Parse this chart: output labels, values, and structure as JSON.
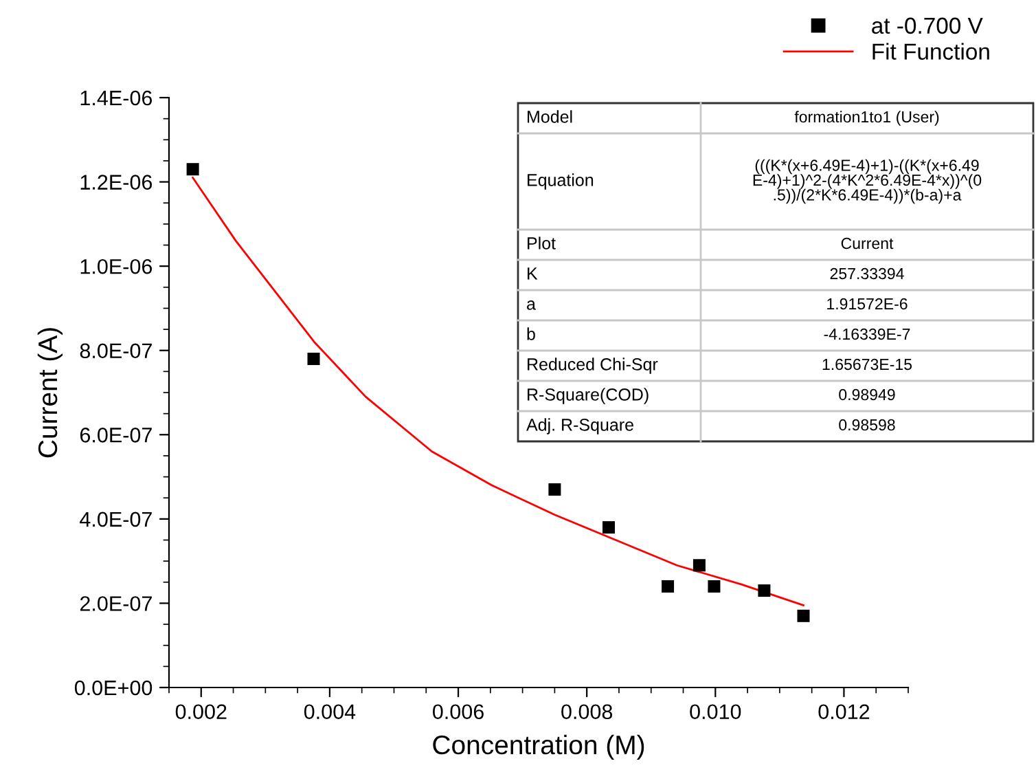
{
  "chart_data": {
    "type": "scatter",
    "xlabel": "Concentration (M)",
    "ylabel": "Current (A)",
    "xlim": [
      0.0015,
      0.013
    ],
    "xticks": [
      {
        "value": 0.002,
        "label": "0.002"
      },
      {
        "value": 0.004,
        "label": "0.004"
      },
      {
        "value": 0.006,
        "label": "0.006"
      },
      {
        "value": 0.008,
        "label": "0.008"
      },
      {
        "value": 0.01,
        "label": "0.010"
      },
      {
        "value": 0.012,
        "label": "0.012"
      }
    ],
    "ylim": [
      0,
      1.4e-06
    ],
    "yticks": [
      {
        "value": 0,
        "label": "0.0E+00"
      },
      {
        "value": 2e-07,
        "label": "2.0E-07"
      },
      {
        "value": 4e-07,
        "label": "4.0E-07"
      },
      {
        "value": 6e-07,
        "label": "6.0E-07"
      },
      {
        "value": 8e-07,
        "label": "8.0E-07"
      },
      {
        "value": 1e-06,
        "label": "1.0E-06"
      },
      {
        "value": 1.2e-06,
        "label": "1.2E-06"
      },
      {
        "value": 1.4e-06,
        "label": "1.4E-06"
      }
    ],
    "grid": false,
    "legend": "top right",
    "series": [
      {
        "name": "at -0.700 V",
        "color": "#000000",
        "marker": "square",
        "x": [
          0.00187,
          0.00375,
          0.0075,
          0.00834,
          0.00926,
          0.00975,
          0.00998,
          0.01076,
          0.01137
        ],
        "values": [
          1.23e-06,
          7.8e-07,
          4.7e-07,
          3.8e-07,
          2.4e-07,
          2.9e-07,
          2.4e-07,
          2.3e-07,
          1.7e-07
        ]
      },
      {
        "name": "Fit Function",
        "type": "line",
        "color": "#ff0000",
        "marker": "none",
        "line_style": "solid",
        "x": [
          0.00187,
          0.00254,
          0.00376,
          0.00456,
          0.00559,
          0.00652,
          0.0075,
          0.00845,
          0.0094,
          0.0104,
          0.01137
        ],
        "values": [
          1.21e-06,
          1.06e-06,
          8.2e-07,
          6.9e-07,
          5.6e-07,
          4.8e-07,
          4.1e-07,
          3.5e-07,
          2.9e-07,
          2.45e-07,
          1.95e-07
        ]
      }
    ],
    "annotations": [
      "Model",
      "formation1to1 (User)",
      "Equation",
      "(((K*(x+6.49E-4)+1)-((K*(x+6.49\nE-4)+1)^2-(4*K^2*6.49E-4*x))^(0\n.5))/(2*K*6.49E-4))*(b-a)+a",
      "Plot",
      "Current",
      "K",
      "257.33394",
      "a",
      "1.91572E-6",
      "b",
      "-4.16339E-7",
      "Reduced Chi-Sqr",
      "1.65673E-15",
      "R-Square(COD)",
      "0.98949",
      "Adj. R-Square",
      "0.98598"
    ]
  }
}
